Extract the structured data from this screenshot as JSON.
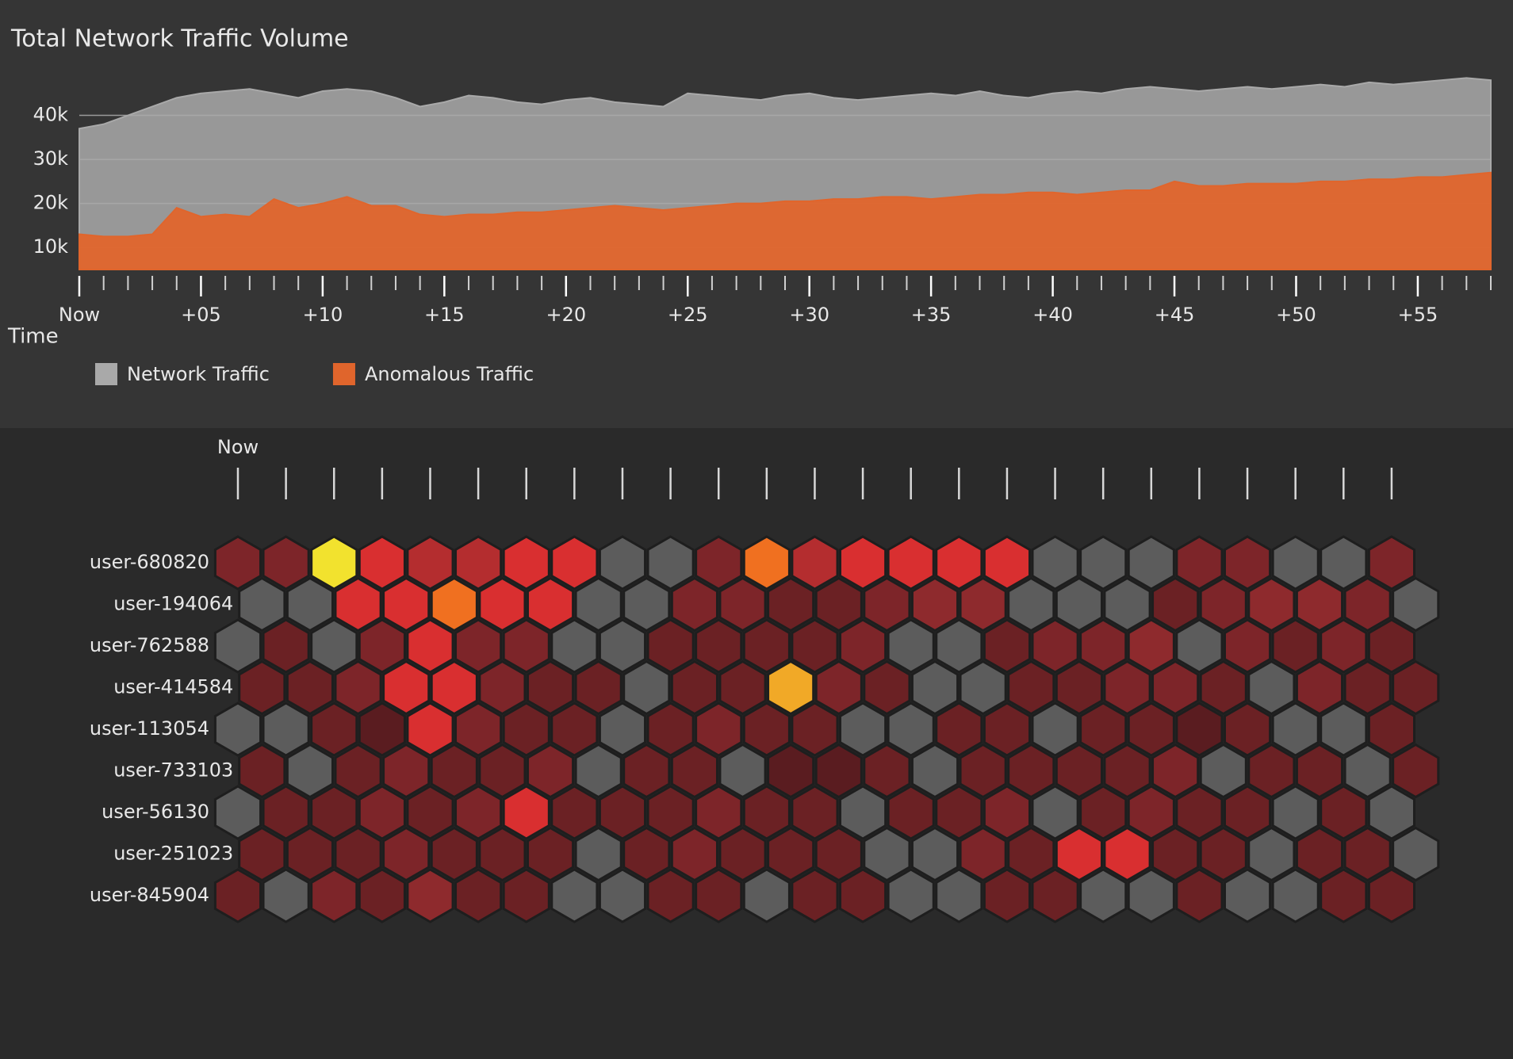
{
  "chart_data": [
    {
      "type": "area",
      "title": "Total Network Traffic Volume",
      "x_label": "Time",
      "x": [
        0,
        1,
        2,
        3,
        4,
        5,
        6,
        7,
        8,
        9,
        10,
        11,
        12,
        13,
        14,
        15,
        16,
        17,
        18,
        19,
        20,
        21,
        22,
        23,
        24,
        25,
        26,
        27,
        28,
        29,
        30,
        31,
        32,
        33,
        34,
        35,
        36,
        37,
        38,
        39,
        40,
        41,
        42,
        43,
        44,
        45,
        46,
        47,
        48,
        49,
        50,
        51,
        52,
        53,
        54,
        55,
        56,
        57,
        58
      ],
      "xlim": [
        0,
        58
      ],
      "xticks": [
        {
          "value": 0,
          "label": "Now"
        },
        {
          "value": 5,
          "label": "+05"
        },
        {
          "value": 10,
          "label": "+10"
        },
        {
          "value": 15,
          "label": "+15"
        },
        {
          "value": 20,
          "label": "+20"
        },
        {
          "value": 25,
          "label": "+25"
        },
        {
          "value": 30,
          "label": "+30"
        },
        {
          "value": 35,
          "label": "+35"
        },
        {
          "value": 40,
          "label": "+40"
        },
        {
          "value": 45,
          "label": "+45"
        },
        {
          "value": 50,
          "label": "+50"
        },
        {
          "value": 55,
          "label": "+55"
        }
      ],
      "ylim": [
        5000,
        50000
      ],
      "yticks": [
        {
          "value": 10000,
          "label": "10k"
        },
        {
          "value": 20000,
          "label": "20k"
        },
        {
          "value": 30000,
          "label": "30k"
        },
        {
          "value": 40000,
          "label": "40k"
        }
      ],
      "grid": true,
      "series": [
        {
          "name": "Network Traffic",
          "color": "#a9a9a9",
          "values": [
            37000,
            38000,
            40000,
            42000,
            44000,
            45000,
            45500,
            46000,
            45000,
            44000,
            45500,
            46000,
            45500,
            44000,
            42000,
            43000,
            44500,
            44000,
            43000,
            42500,
            43500,
            44000,
            43000,
            42500,
            42000,
            45000,
            44500,
            44000,
            43500,
            44500,
            45000,
            44000,
            43500,
            44000,
            44500,
            45000,
            44500,
            45500,
            44500,
            44000,
            45000,
            45500,
            45000,
            46000,
            46500,
            46000,
            45500,
            46000,
            46500,
            46000,
            46500,
            47000,
            46500,
            47500,
            47000,
            47500,
            48000,
            48500,
            48000
          ]
        },
        {
          "name": "Anomalous Traffic",
          "color": "#e0652c",
          "values": [
            13000,
            12500,
            12500,
            13000,
            19000,
            17000,
            17500,
            17000,
            21000,
            19000,
            20000,
            21500,
            19500,
            19500,
            17500,
            17000,
            17500,
            17500,
            18000,
            18000,
            18500,
            19000,
            19500,
            19000,
            18500,
            19000,
            19500,
            20000,
            20000,
            20500,
            20500,
            21000,
            21000,
            21500,
            21500,
            21000,
            21500,
            22000,
            22000,
            22500,
            22500,
            22000,
            22500,
            23000,
            23000,
            25000,
            24000,
            24000,
            24500,
            24500,
            24500,
            25000,
            25000,
            25500,
            25500,
            26000,
            26000,
            26500,
            27000
          ]
        }
      ]
    },
    {
      "type": "hexmap",
      "categories": [
        "Now",
        null,
        null,
        null,
        null,
        null,
        null,
        null,
        null,
        null,
        null,
        null,
        null,
        null,
        null,
        null,
        null,
        null,
        null,
        null,
        null,
        null,
        null,
        null,
        null
      ],
      "rows": [
        "user-680820",
        "user-194064",
        "user-762588",
        "user-414584",
        "user-113054",
        "user-733103",
        "user-56130",
        "user-251023",
        "user-845904"
      ],
      "color_scale": [
        {
          "value": 0,
          "color": "#5c5c5c"
        },
        {
          "value": 1,
          "color": "#5a1c20"
        },
        {
          "value": 4,
          "color": "#8e2a2d"
        },
        {
          "value": 6,
          "color": "#d92f30"
        },
        {
          "value": 8,
          "color": "#f07020"
        },
        {
          "value": 10,
          "color": "#f2e22e"
        }
      ],
      "values": [
        [
          3,
          3,
          10,
          6,
          5,
          5,
          6,
          6,
          0,
          0,
          3,
          8,
          5,
          6,
          6,
          6,
          6,
          0,
          0,
          0,
          3,
          3,
          0,
          0,
          3
        ],
        [
          0,
          0,
          6,
          6,
          8,
          6,
          6,
          0,
          0,
          3,
          3,
          2,
          2,
          3,
          4,
          4,
          0,
          0,
          0,
          2,
          3,
          4,
          4,
          3,
          0
        ],
        [
          0,
          2,
          0,
          3,
          6,
          3,
          3,
          0,
          0,
          2,
          2,
          2,
          2,
          3,
          0,
          0,
          2,
          3,
          3,
          4,
          0,
          3,
          2,
          3,
          2
        ],
        [
          2,
          2,
          3,
          6,
          6,
          3,
          2,
          2,
          0,
          2,
          2,
          9,
          3,
          2,
          0,
          0,
          2,
          2,
          3,
          3,
          2,
          0,
          3,
          2,
          2
        ],
        [
          0,
          0,
          2,
          1,
          6,
          3,
          2,
          2,
          0,
          2,
          3,
          2,
          2,
          0,
          0,
          2,
          2,
          0,
          2,
          2,
          1,
          2,
          0,
          0,
          2
        ],
        [
          2,
          0,
          2,
          3,
          2,
          2,
          3,
          0,
          2,
          2,
          0,
          1,
          1,
          2,
          0,
          2,
          2,
          2,
          2,
          3,
          0,
          2,
          2,
          0,
          2
        ],
        [
          0,
          2,
          2,
          3,
          2,
          3,
          6,
          2,
          2,
          2,
          3,
          2,
          2,
          0,
          2,
          2,
          3,
          0,
          2,
          3,
          2,
          2,
          0,
          2,
          0
        ],
        [
          2,
          2,
          2,
          3,
          2,
          2,
          2,
          0,
          2,
          3,
          2,
          2,
          2,
          0,
          0,
          3,
          2,
          6,
          6,
          2,
          2,
          0,
          2,
          2,
          0
        ],
        [
          2,
          0,
          3,
          2,
          4,
          2,
          2,
          0,
          0,
          2,
          2,
          0,
          2,
          2,
          0,
          0,
          2,
          2,
          0,
          0,
          2,
          0,
          0,
          2,
          2
        ]
      ]
    }
  ]
}
